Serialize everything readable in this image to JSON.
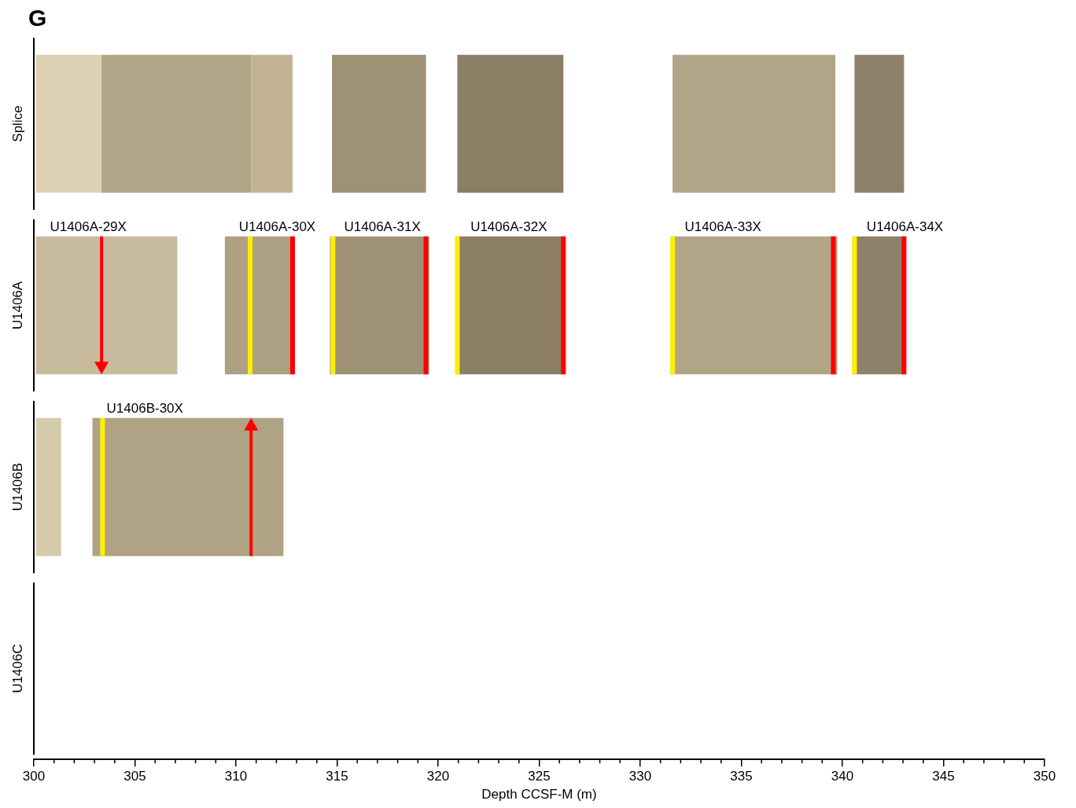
{
  "chart_data": {
    "type": "core_splice",
    "panel": "G",
    "x_label": "Depth CCSF-M (m)",
    "xlim": [
      300,
      350
    ],
    "xticks": [
      300,
      305,
      310,
      315,
      320,
      325,
      330,
      335,
      340,
      345,
      350
    ],
    "orientation": "horizontal",
    "rows": [
      "Splice",
      "U1406A",
      "U1406B",
      "U1406C"
    ],
    "segments": [
      {
        "row": "Splice",
        "values": [
          300.1,
          303.35
        ],
        "color": "#ddd0b4"
      },
      {
        "row": "Splice",
        "values": [
          303.35,
          310.75
        ],
        "color": "#b2a486"
      },
      {
        "row": "Splice",
        "values": [
          310.75,
          312.8
        ],
        "color": "#c2b493"
      },
      {
        "row": "Splice",
        "values": [
          314.75,
          319.4
        ],
        "color": "#9f9175"
      },
      {
        "row": "Splice",
        "values": [
          320.95,
          326.2
        ],
        "color": "#8c7e65"
      },
      {
        "row": "Splice",
        "values": [
          331.6,
          339.65
        ],
        "color": "#b2a587"
      },
      {
        "row": "Splice",
        "values": [
          340.6,
          343.05
        ],
        "color": "#8f8169"
      },
      {
        "row": "U1406A",
        "name": "U1406A-29X",
        "values": [
          300.1,
          307.1
        ],
        "color": "#c8bb9d"
      },
      {
        "row": "U1406A",
        "name": "U1406A-30X",
        "values": [
          309.45,
          312.9
        ],
        "color": "#aea083"
      },
      {
        "row": "U1406A",
        "name": "U1406A-31X",
        "values": [
          314.65,
          319.55
        ],
        "color": "#9f9175"
      },
      {
        "row": "U1406A",
        "name": "U1406A-32X",
        "values": [
          320.9,
          326.25
        ],
        "color": "#8c7e65"
      },
      {
        "row": "U1406A",
        "name": "U1406A-33X",
        "values": [
          331.5,
          339.75
        ],
        "color": "#b2a587"
      },
      {
        "row": "U1406A",
        "name": "U1406A-34X",
        "values": [
          340.5,
          343.15
        ],
        "color": "#8f8169"
      },
      {
        "row": "U1406B",
        "values": [
          300.1,
          301.35
        ],
        "color": "#d6caac"
      },
      {
        "row": "U1406B",
        "name": "U1406B-30X",
        "values": [
          302.9,
          312.35
        ],
        "color": "#b0a284"
      }
    ],
    "markers": [
      {
        "row": "U1406A",
        "depth": 303.35,
        "color": "#ff0000",
        "marker": "arrow_down"
      },
      {
        "row": "U1406A",
        "depth": 310.7,
        "color": "#ffee00",
        "marker": "line"
      },
      {
        "row": "U1406A",
        "depth": 312.8,
        "color": "#ff0000",
        "marker": "line"
      },
      {
        "row": "U1406A",
        "depth": 314.8,
        "color": "#ffee00",
        "marker": "line"
      },
      {
        "row": "U1406A",
        "depth": 319.4,
        "color": "#ff0000",
        "marker": "line"
      },
      {
        "row": "U1406A",
        "depth": 320.95,
        "color": "#ffee00",
        "marker": "line"
      },
      {
        "row": "U1406A",
        "depth": 326.2,
        "color": "#ff0000",
        "marker": "line"
      },
      {
        "row": "U1406A",
        "depth": 331.6,
        "color": "#ffee00",
        "marker": "line"
      },
      {
        "row": "U1406A",
        "depth": 339.55,
        "color": "#ff0000",
        "marker": "line"
      },
      {
        "row": "U1406A",
        "depth": 340.6,
        "color": "#ffee00",
        "marker": "line"
      },
      {
        "row": "U1406A",
        "depth": 343.05,
        "color": "#ff0000",
        "marker": "line"
      },
      {
        "row": "U1406B",
        "depth": 303.4,
        "color": "#ffee00",
        "marker": "line"
      },
      {
        "row": "U1406B",
        "depth": 310.75,
        "color": "#ff0000",
        "marker": "arrow_up"
      }
    ],
    "grid": false,
    "legend": false
  }
}
